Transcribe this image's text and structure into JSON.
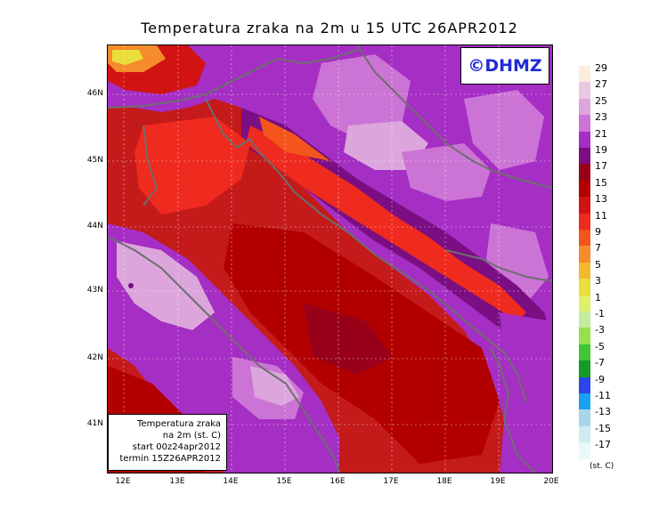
{
  "title": "Temperatura zraka na 2m u 15 UTC 26APR2012",
  "logo_text": "©DHMZ",
  "info_box": {
    "line1": "Temperatura zraka",
    "line2": "na 2m (st. C)",
    "line3": "start 00z24apr2012",
    "line4": "termin 15Z26APR2012"
  },
  "lat_labels": [
    "46N",
    "45N",
    "44N",
    "43N",
    "42N",
    "41N"
  ],
  "lon_labels": [
    "12E",
    "13E",
    "14E",
    "15E",
    "16E",
    "17E",
    "18E",
    "19E",
    "20E"
  ],
  "legend": {
    "units": "(st. C)",
    "labels": [
      "29",
      "27",
      "25",
      "23",
      "21",
      "19",
      "17",
      "15",
      "13",
      "11",
      "9",
      "7",
      "5",
      "3",
      "1",
      "-1",
      "-3",
      "-5",
      "-7",
      "-9",
      "-11",
      "-13",
      "-15",
      "-17"
    ],
    "colors": [
      "#fbeede",
      "#e9c8e2",
      "#dca6dc",
      "#cc74d6",
      "#a52ec4",
      "#7a0e82",
      "#98001a",
      "#b20000",
      "#d11313",
      "#ef2a1e",
      "#f4551c",
      "#f58b2a",
      "#f3b830",
      "#e9de3a",
      "#dff06a",
      "#c4ec9e",
      "#97e04b",
      "#41c536",
      "#159a28",
      "#2b46ea",
      "#1aa0f0",
      "#a8d6e8",
      "#d0ecf0",
      "#eaf8fa"
    ]
  }
}
